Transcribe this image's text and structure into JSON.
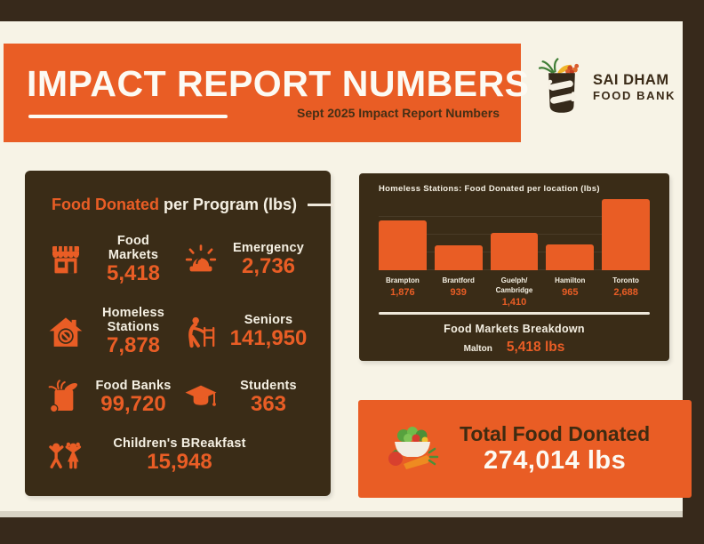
{
  "header": {
    "title": "IMPACT REPORT NUMBERS",
    "subtitle": "Sept 2025 Impact Report Numbers"
  },
  "logo": {
    "name_line1": "SAI DHAM",
    "name_line2": "FOOD BANK",
    "icon": "food-bank-bag-icon"
  },
  "programs": {
    "title_highlight": "Food Donated",
    "title_rest": " per Program (lbs)",
    "items": [
      {
        "label": "Food Markets",
        "value_display": "5,418",
        "icon": "store-icon"
      },
      {
        "label": "Emergency",
        "value_display": "2,736",
        "icon": "siren-icon"
      },
      {
        "label": "Homeless Stations",
        "value_display": "7,878",
        "icon": "homeless-station-icon"
      },
      {
        "label": "Seniors",
        "value_display": "141,950",
        "icon": "senior-walker-icon"
      },
      {
        "label": "Food Banks",
        "value_display": "99,720",
        "icon": "grocery-bag-icon"
      },
      {
        "label": "Students",
        "value_display": "363",
        "icon": "graduation-cap-icon"
      },
      {
        "label": "Children's BReakfast",
        "value_display": "15,948",
        "icon": "children-icon"
      }
    ]
  },
  "chart_data": {
    "type": "bar",
    "title": "Homeless Stations: Food Donated per location (lbs)",
    "xlabel": "",
    "ylabel": "lbs",
    "ylim": [
      0,
      2688
    ],
    "grid": true,
    "legend": false,
    "bar_color": "#e95d25",
    "bars": [
      {
        "category": "Brampton",
        "value": 1876,
        "label": "1,876"
      },
      {
        "category": "Brantford",
        "value": 939,
        "label": "939"
      },
      {
        "category": "Guelph/Cambridge",
        "value": 1410,
        "label": "1,410"
      },
      {
        "category": "Hamilton",
        "value": 965,
        "label": "965"
      },
      {
        "category": "Toronto",
        "value": 2688,
        "label": "2,688"
      }
    ]
  },
  "breakdown": {
    "title": "Food Markets Breakdown",
    "rows": [
      {
        "label": "Malton",
        "value_display": "5,418 lbs"
      }
    ]
  },
  "total": {
    "label": "Total Food Donated",
    "value_display": "274,014 lbs",
    "icon": "salad-bowl-icon"
  },
  "colors": {
    "orange": "#e95d25",
    "panel_brown": "#3a2c17",
    "frame_brown": "#37291b",
    "cream": "#f7f3e6",
    "dark_text": "#452f15",
    "light_text": "#f5f0e3"
  }
}
